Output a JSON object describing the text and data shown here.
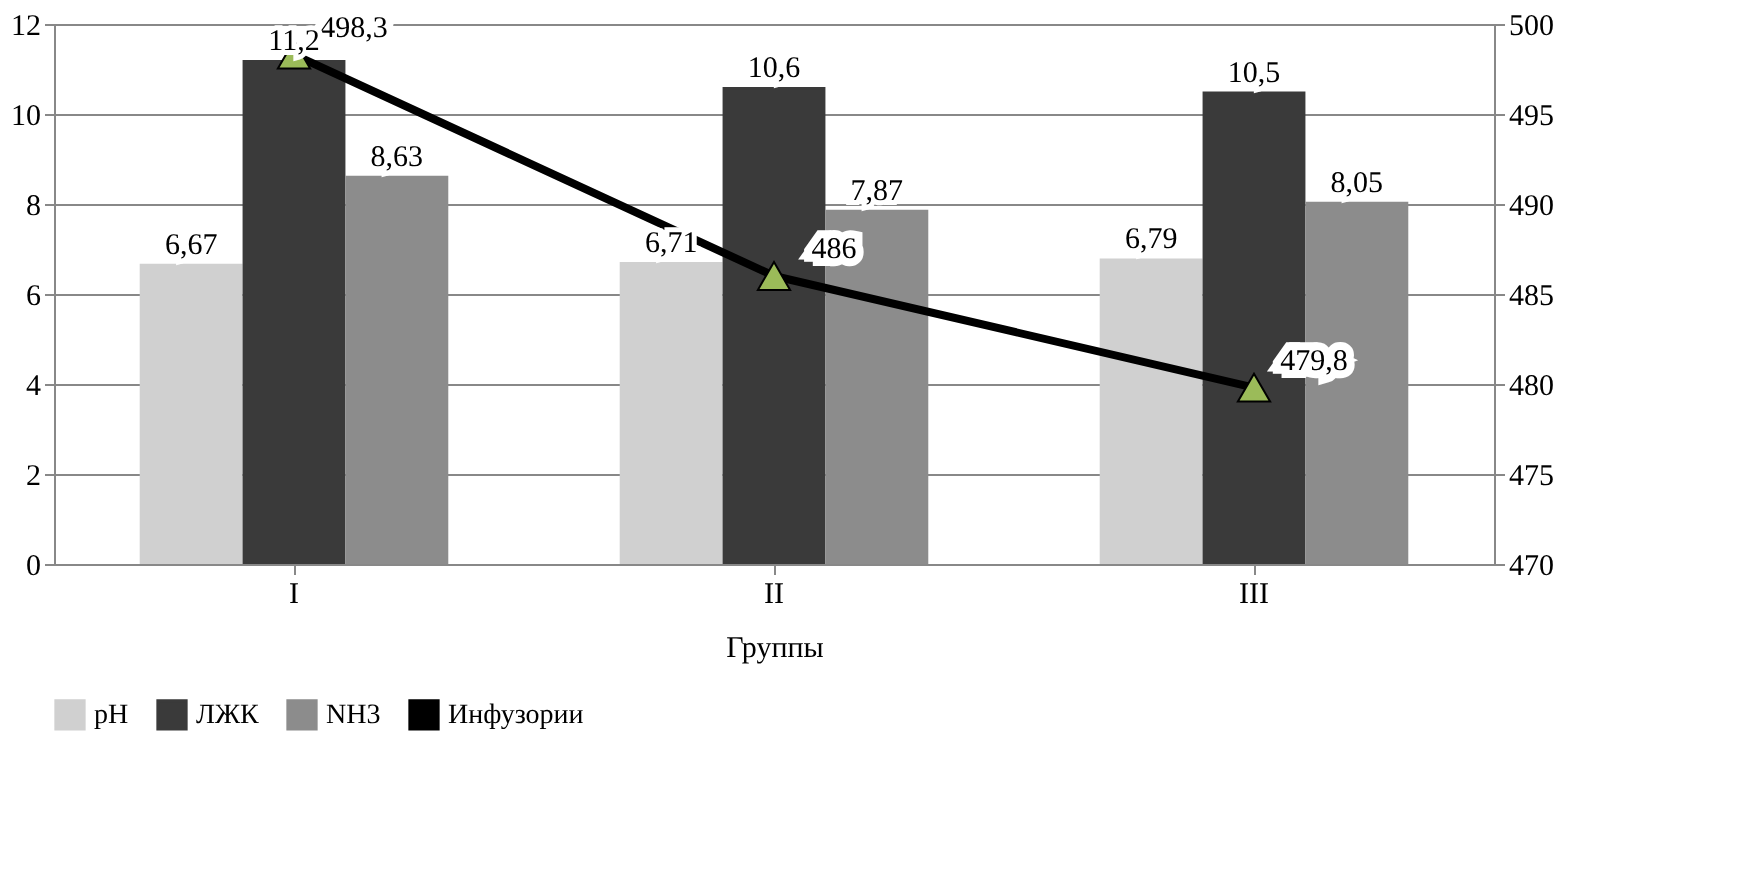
{
  "chart_data": {
    "type": "bar",
    "xlabel": "Группы",
    "categories": [
      "I",
      "II",
      "III"
    ],
    "series": [
      {
        "name": "pH",
        "type": "bar",
        "color": "#d0d0d0",
        "values": [
          6.67,
          6.71,
          6.79
        ],
        "value_labels": [
          "6,67",
          "6,71",
          "6,79"
        ]
      },
      {
        "name": "ЛЖК",
        "type": "bar",
        "color": "#3a3a3a",
        "values": [
          11.2,
          10.6,
          10.5
        ],
        "value_labels": [
          "11,2",
          "10,6",
          "10,5"
        ]
      },
      {
        "name": "NH3",
        "type": "bar",
        "color": "#8c8c8c",
        "values": [
          8.63,
          7.87,
          8.05
        ],
        "value_labels": [
          "8,63",
          "7,87",
          "8,05"
        ]
      },
      {
        "name": "Инфузории",
        "type": "line",
        "axis": "y2",
        "color": "#000000",
        "marker": "triangle",
        "values": [
          498.3,
          486,
          479.8
        ],
        "value_labels": [
          "498,3",
          "486",
          "479,8"
        ]
      }
    ],
    "ylim": [
      0,
      12
    ],
    "yticks": [
      0,
      2,
      4,
      6,
      8,
      10,
      12
    ],
    "y2lim": [
      470,
      500
    ],
    "y2ticks": [
      470,
      475,
      480,
      485,
      490,
      495,
      500
    ],
    "grid": "y",
    "legend": "bottom"
  }
}
